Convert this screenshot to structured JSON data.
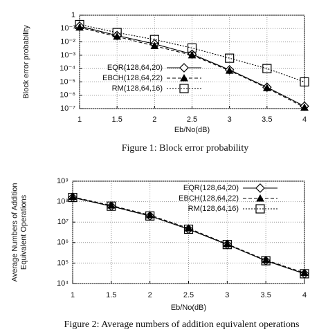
{
  "chart_data": [
    {
      "type": "line",
      "ylabel": [
        "Block error probability"
      ],
      "xlabel": "Eb/No(dB)",
      "caption": "Figure 1: Block error probability",
      "x": [
        1,
        1.5,
        2,
        2.5,
        3,
        3.5,
        4
      ],
      "xlim": [
        1,
        4
      ],
      "xticks": [
        1,
        1.5,
        2,
        2.5,
        3,
        3.5,
        4
      ],
      "ylog": true,
      "ylim": [
        1e-07,
        1
      ],
      "yticks": [
        {
          "value": 1e-07,
          "label": "10⁻⁷"
        },
        {
          "value": 1e-06,
          "label": "10⁻⁶"
        },
        {
          "value": 1e-05,
          "label": "10⁻⁵"
        },
        {
          "value": 0.0001,
          "label": "10⁻⁴"
        },
        {
          "value": 0.001,
          "label": "10⁻³"
        },
        {
          "value": 0.01,
          "label": "10⁻²"
        },
        {
          "value": 0.1,
          "label": "10⁻¹"
        },
        1
      ],
      "grid": true,
      "legend": "center-left",
      "series": [
        {
          "name": "EQR(128,64,20)",
          "color": "#000000",
          "marker": "diamond",
          "dash": "solid",
          "values": [
            0.15,
            0.03,
            0.007,
            0.0012,
            8e-05,
            4e-06,
            1.5e-07
          ]
        },
        {
          "name": "EBCH(128,64,22)",
          "color": "#000000",
          "marker": "triangle",
          "dash": "dashed",
          "values": [
            0.12,
            0.025,
            0.005,
            0.001,
            7e-05,
            3.5e-06,
            1.2e-07
          ]
        },
        {
          "name": "RM(128,64,16)",
          "color": "#000000",
          "marker": "square",
          "dash": "dotted",
          "values": [
            0.2,
            0.05,
            0.015,
            0.0035,
            0.0006,
            0.0001,
            1e-05
          ]
        }
      ]
    },
    {
      "type": "line",
      "ylabel": [
        "Average Numbers of Addition",
        "Equivalent Operations"
      ],
      "xlabel": "Eb/No(dB)",
      "caption": "Figure 2: Average numbers of addition equivalent operations",
      "x": [
        1,
        1.5,
        2,
        2.5,
        3,
        3.5,
        4
      ],
      "xlim": [
        1,
        4
      ],
      "xticks": [
        1,
        1.5,
        2,
        2.5,
        3,
        3.5,
        4
      ],
      "ylog": true,
      "ylim": [
        10000,
        1000000000
      ],
      "yticks": [
        {
          "value": 10000,
          "label": "10⁴"
        },
        {
          "value": 100000,
          "label": "10⁵"
        },
        {
          "value": 1000000,
          "label": "10⁶"
        },
        {
          "value": 10000000,
          "label": "10⁷"
        },
        {
          "value": 100000000,
          "label": "10⁸"
        },
        {
          "value": 1000000000,
          "label": "10⁹"
        }
      ],
      "grid": true,
      "legend": "top-right",
      "series": [
        {
          "name": "EQR(128,64,20)",
          "color": "#000000",
          "marker": "diamond",
          "dash": "solid",
          "values": [
            160000000,
            60000000,
            20000000,
            4500000,
            800000,
            130000,
            30000
          ]
        },
        {
          "name": "EBCH(128,64,22)",
          "color": "#000000",
          "marker": "triangle",
          "dash": "dashed",
          "values": [
            170000000,
            65000000,
            22000000,
            5000000,
            850000,
            140000,
            33000
          ]
        },
        {
          "name": "RM(128,64,16)",
          "color": "#000000",
          "marker": "square",
          "dash": "dotted",
          "values": [
            160000000,
            60000000,
            20000000,
            4500000,
            800000,
            130000,
            30000
          ]
        }
      ]
    }
  ]
}
